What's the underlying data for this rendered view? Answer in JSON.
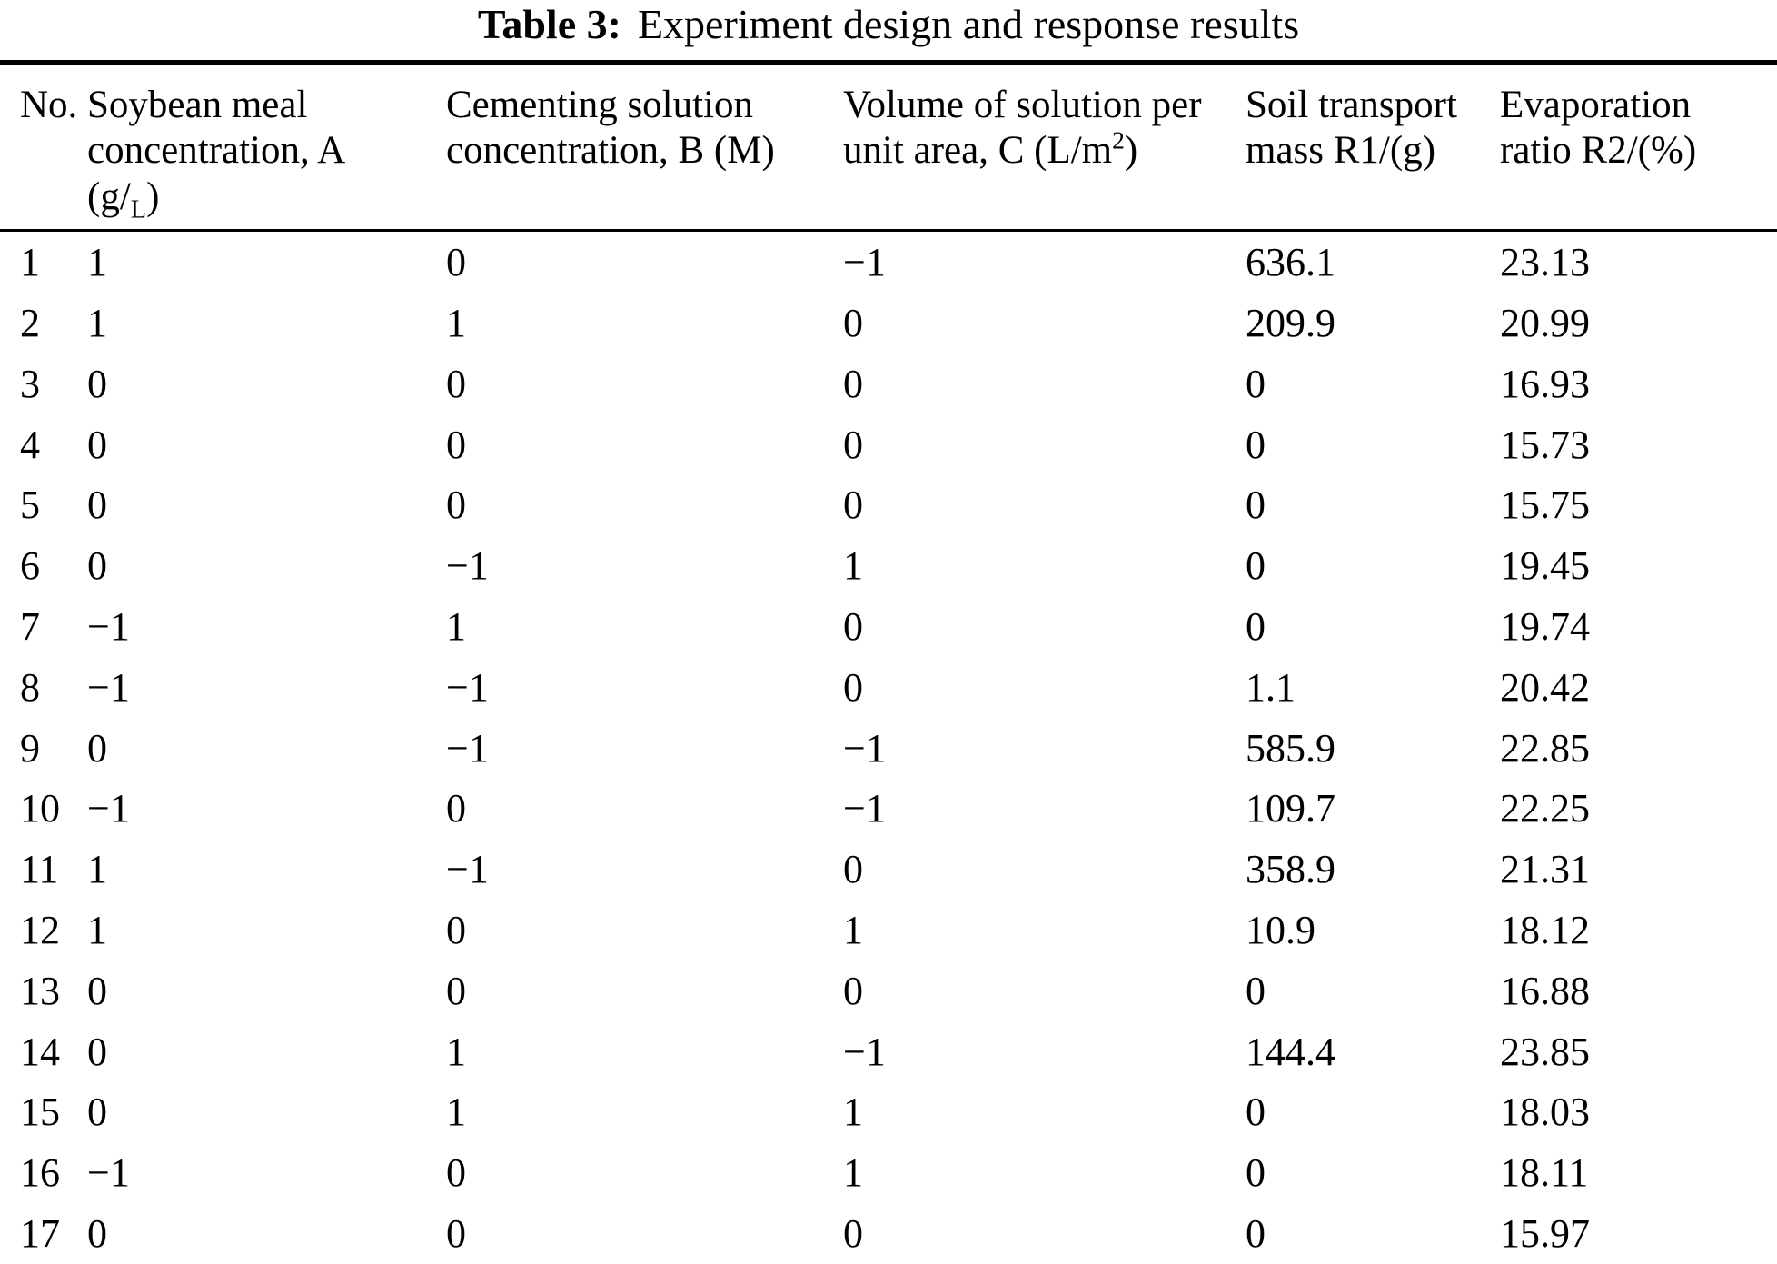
{
  "title": {
    "label": "Table 3:",
    "text": "Experiment design and response results"
  },
  "table": {
    "columns": [
      {
        "line1": "No."
      },
      {
        "line1": "Soybean meal",
        "line2": "concentration, A",
        "unit_prefix": "(g/",
        "unit_sub": "L",
        "unit_suffix": ")"
      },
      {
        "line1": "Cementing solution",
        "line2": "concentration, B (M)"
      },
      {
        "line1": "Volume of solution per",
        "line2": "unit area, C (L/m",
        "unit_sup": "2",
        "unit_suffix": ")"
      },
      {
        "line1": "Soil transport",
        "line2": "mass R1/(g)"
      },
      {
        "line1": "Evaporation",
        "line2": "ratio R2/(%)"
      }
    ],
    "rows": [
      [
        "1",
        "1",
        "0",
        "−1",
        "636.1",
        "23.13"
      ],
      [
        "2",
        "1",
        "1",
        "0",
        "209.9",
        "20.99"
      ],
      [
        "3",
        "0",
        "0",
        "0",
        "0",
        "16.93"
      ],
      [
        "4",
        "0",
        "0",
        "0",
        "0",
        "15.73"
      ],
      [
        "5",
        "0",
        "0",
        "0",
        "0",
        "15.75"
      ],
      [
        "6",
        "0",
        "−1",
        "1",
        "0",
        "19.45"
      ],
      [
        "7",
        "−1",
        "1",
        "0",
        "0",
        "19.74"
      ],
      [
        "8",
        "−1",
        "−1",
        "0",
        "1.1",
        "20.42"
      ],
      [
        "9",
        "0",
        "−1",
        "−1",
        "585.9",
        "22.85"
      ],
      [
        "10",
        "−1",
        "0",
        "−1",
        "109.7",
        "22.25"
      ],
      [
        "11",
        "1",
        "−1",
        "0",
        "358.9",
        "21.31"
      ],
      [
        "12",
        "1",
        "0",
        "1",
        "10.9",
        "18.12"
      ],
      [
        "13",
        "0",
        "0",
        "0",
        "0",
        "16.88"
      ],
      [
        "14",
        "0",
        "1",
        "−1",
        "144.4",
        "23.85"
      ],
      [
        "15",
        "0",
        "1",
        "1",
        "0",
        "18.03"
      ],
      [
        "16",
        "−1",
        "0",
        "1",
        "0",
        "18.11"
      ],
      [
        "17",
        "0",
        "0",
        "0",
        "0",
        "15.97"
      ]
    ]
  }
}
